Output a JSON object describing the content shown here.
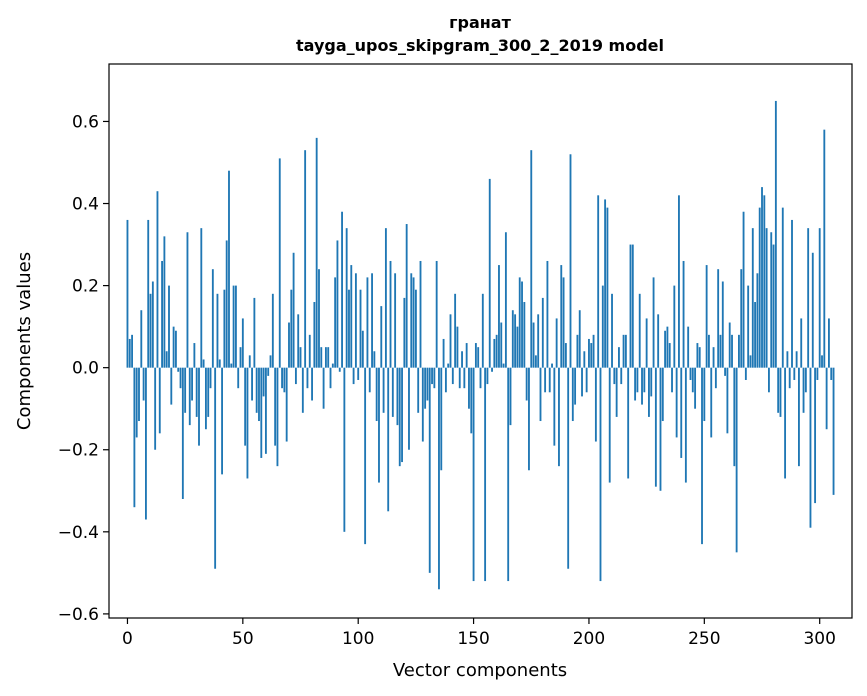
{
  "chart_data": {
    "type": "bar",
    "title": "гранат",
    "subtitle": "tayga_upos_skipgram_300_2_2019 model",
    "xlabel": "Vector components",
    "ylabel": "Components values",
    "xlim": [
      -8,
      314
    ],
    "ylim": [
      -0.61,
      0.74
    ],
    "xticks": [
      0,
      50,
      100,
      150,
      200,
      250,
      300
    ],
    "yticks": [
      -0.6,
      -0.4,
      -0.2,
      0.0,
      0.2,
      0.4,
      0.6
    ],
    "ytick_labels": [
      "−0.6",
      "−0.4",
      "−0.2",
      "0.0",
      "0.2",
      "0.4",
      "0.6"
    ],
    "xtick_labels": [
      "0",
      "50",
      "100",
      "150",
      "200",
      "250",
      "300"
    ],
    "bar_color": "#1f77b4",
    "grid": false,
    "values": [
      0.36,
      0.07,
      0.08,
      -0.34,
      -0.17,
      -0.13,
      0.14,
      -0.08,
      -0.37,
      0.36,
      0.18,
      0.21,
      -0.2,
      0.43,
      -0.16,
      0.26,
      0.32,
      0.04,
      0.2,
      -0.09,
      0.1,
      0.09,
      -0.01,
      -0.05,
      -0.32,
      -0.11,
      0.33,
      -0.14,
      -0.08,
      0.06,
      -0.12,
      -0.19,
      0.34,
      0.02,
      -0.15,
      -0.12,
      -0.05,
      0.24,
      -0.49,
      0.18,
      0.02,
      -0.26,
      0.19,
      0.31,
      0.48,
      0.01,
      0.2,
      0.2,
      -0.05,
      0.05,
      0.12,
      -0.19,
      -0.27,
      0.03,
      -0.08,
      0.17,
      -0.11,
      -0.13,
      -0.22,
      -0.07,
      -0.21,
      -0.02,
      0.03,
      0.18,
      -0.19,
      -0.24,
      0.51,
      -0.05,
      -0.06,
      -0.18,
      0.11,
      0.19,
      0.28,
      -0.04,
      0.13,
      0.05,
      -0.11,
      0.53,
      -0.05,
      0.08,
      -0.08,
      0.16,
      0.56,
      0.24,
      0.05,
      -0.1,
      0.05,
      0.05,
      -0.05,
      0.01,
      0.22,
      0.31,
      -0.01,
      0.38,
      -0.4,
      0.34,
      0.19,
      0.25,
      -0.04,
      0.23,
      -0.03,
      0.19,
      0.09,
      -0.43,
      0.22,
      -0.06,
      0.23,
      0.04,
      -0.13,
      -0.28,
      0.15,
      -0.11,
      0.34,
      -0.35,
      0.26,
      -0.12,
      0.23,
      -0.14,
      -0.24,
      -0.23,
      0.17,
      0.35,
      -0.2,
      0.23,
      0.22,
      0.19,
      -0.11,
      0.26,
      -0.18,
      -0.1,
      -0.08,
      -0.5,
      -0.04,
      -0.05,
      0.26,
      -0.54,
      -0.25,
      0.07,
      -0.06,
      0.01,
      0.13,
      -0.04,
      0.18,
      0.1,
      -0.05,
      0.04,
      -0.05,
      0.06,
      -0.1,
      -0.16,
      -0.52,
      0.06,
      0.05,
      -0.05,
      0.18,
      -0.52,
      -0.04,
      0.46,
      -0.01,
      0.07,
      0.08,
      0.25,
      0.11,
      0.01,
      0.33,
      -0.52,
      -0.14,
      0.14,
      0.13,
      0.1,
      0.22,
      0.21,
      0.16,
      -0.08,
      -0.25,
      0.53,
      0.11,
      0.03,
      0.13,
      -0.13,
      0.17,
      -0.06,
      0.26,
      -0.06,
      0.01,
      -0.19,
      0.12,
      -0.24,
      0.25,
      0.22,
      0.06,
      -0.49,
      0.52,
      -0.13,
      -0.09,
      0.08,
      0.14,
      -0.07,
      0.04,
      -0.06,
      0.07,
      0.06,
      0.08,
      -0.18,
      0.42,
      -0.52,
      0.2,
      0.41,
      0.39,
      -0.28,
      0.18,
      -0.04,
      -0.12,
      0.05,
      -0.04,
      0.08,
      0.08,
      -0.27,
      0.3,
      0.3,
      -0.08,
      -0.06,
      0.18,
      -0.09,
      -0.06,
      0.12,
      -0.12,
      -0.07,
      0.22,
      -0.29,
      0.13,
      -0.3,
      -0.13,
      0.09,
      0.1,
      0.06,
      -0.06,
      0.2,
      -0.17,
      0.42,
      -0.22,
      0.26,
      -0.28,
      0.1,
      -0.03,
      -0.06,
      -0.1,
      0.06,
      0.05,
      -0.43,
      -0.13,
      0.25,
      0.08,
      -0.17,
      0.05,
      -0.05,
      0.24,
      0.08,
      0.21,
      -0.02,
      -0.16,
      0.11,
      0.08,
      -0.24,
      -0.45,
      0.08,
      0.24,
      0.38,
      -0.03,
      0.2,
      0.03,
      0.34,
      0.16,
      0.23,
      0.39,
      0.44,
      0.42,
      0.34,
      -0.06,
      0.33,
      0.3,
      0.65,
      -0.11,
      -0.12,
      0.39,
      -0.27,
      0.04,
      -0.05,
      0.36,
      -0.03,
      0.04,
      -0.24,
      0.12,
      -0.11,
      -0.06,
      0.34,
      -0.39,
      0.28,
      -0.33,
      -0.03,
      0.34,
      0.03,
      0.58,
      -0.15,
      0.12,
      -0.03,
      -0.31
    ]
  }
}
